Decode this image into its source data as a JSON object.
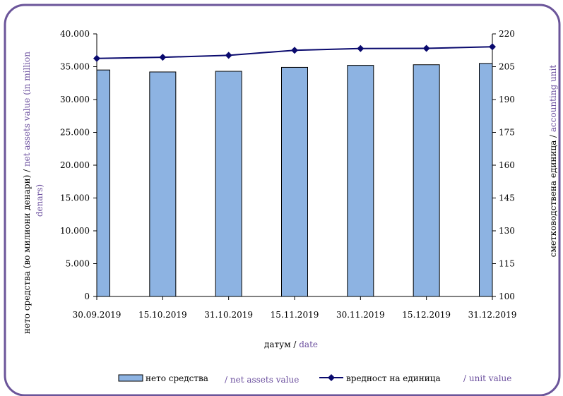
{
  "colors": {
    "frame": "#6b559a",
    "bar_fill": "#8db3e2",
    "bar_stroke": "#000000",
    "line": "#0a0a6e",
    "english_text": "#6b4f9e",
    "axis": "#000000"
  },
  "chart_data": {
    "type": "bar",
    "categories": [
      "30.09.2019",
      "15.10.2019",
      "31.10.2019",
      "15.11.2019",
      "30.11.2019",
      "15.12.2019",
      "31.12.2019"
    ],
    "series": [
      {
        "name": "нето средства",
        "name_en": "/ net assets value",
        "type": "bar",
        "axis": "left",
        "values": [
          34500,
          34200,
          34300,
          34900,
          35200,
          35300,
          35500
        ]
      },
      {
        "name": "вредност на единица",
        "name_en": "/ unit value",
        "type": "line",
        "axis": "right",
        "marker": "diamond",
        "values": [
          208.8,
          209.3,
          210.2,
          212.5,
          213.3,
          213.4,
          214.1
        ]
      }
    ],
    "left_axis": {
      "label_mk": "нето средства (во милиони денари) / ",
      "label_en_1": "net assets value (in million",
      "label_en_2": "denars)",
      "ylim": [
        0,
        40000
      ],
      "ticks": [
        "0",
        "5.000",
        "10.000",
        "15.000",
        "20.000",
        "25.000",
        "30.000",
        "35.000",
        "40.000"
      ],
      "tick_values": [
        0,
        5000,
        10000,
        15000,
        20000,
        25000,
        30000,
        35000,
        40000
      ]
    },
    "right_axis": {
      "label_mk": "сметководствена единица / ",
      "label_en": "accounting unit",
      "ylim": [
        100,
        220
      ],
      "ticks": [
        "100",
        "115",
        "130",
        "145",
        "160",
        "175",
        "190",
        "205",
        "220"
      ],
      "tick_values": [
        100,
        115,
        130,
        145,
        160,
        175,
        190,
        205,
        220
      ]
    },
    "x_axis": {
      "label_mk": "датум / ",
      "label_en": "date"
    },
    "legend_position": "bottom",
    "grid": false
  }
}
